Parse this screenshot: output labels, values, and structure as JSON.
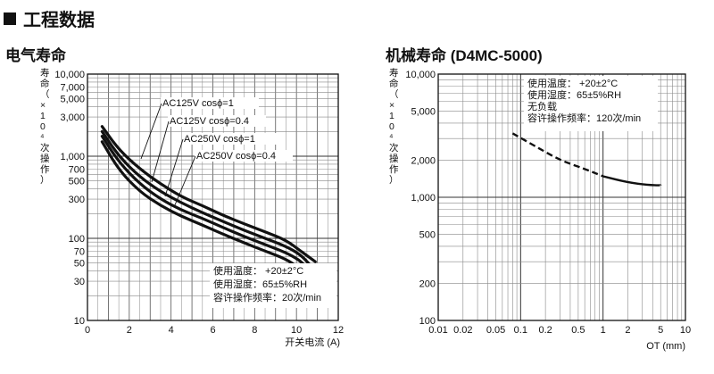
{
  "section_title": "工程数据",
  "chart_data": [
    {
      "type": "line",
      "title": "电气寿命",
      "xlabel": "开关电流 (A)",
      "ylabel": "寿命（×10⁴次操作）",
      "y_scale": "log",
      "xlim": [
        0,
        12
      ],
      "ylim": [
        10,
        10000
      ],
      "x_ticks": [
        0,
        2,
        4,
        6,
        8,
        10,
        12
      ],
      "y_ticks": [
        10,
        30,
        50,
        70,
        100,
        300,
        500,
        700,
        1000,
        3000,
        5000,
        7000,
        10000
      ],
      "y_tick_labels": [
        "10",
        "30",
        "50",
        "70",
        "100",
        "300",
        "500",
        "700",
        "1,000",
        "3,000",
        "5,000",
        "7,000",
        "10,000"
      ],
      "grid": true,
      "series": [
        {
          "name": "AC125V cosϕ=1",
          "x": [
            0.7,
            1.5,
            2.5,
            3.5,
            4.5,
            5.5,
            6.5,
            7.5,
            8.5,
            9.5,
            10.2,
            10.9
          ],
          "y": [
            2300,
            1200,
            700,
            460,
            320,
            250,
            190,
            150,
            120,
            95,
            70,
            52
          ]
        },
        {
          "name": "AC125V cosϕ=0.4",
          "x": [
            0.7,
            1.5,
            2.5,
            3.5,
            4.5,
            5.5,
            6.5,
            7.5,
            8.5,
            9.5,
            10.2,
            10.6
          ],
          "y": [
            2000,
            1000,
            560,
            370,
            270,
            205,
            160,
            125,
            100,
            80,
            63,
            49
          ]
        },
        {
          "name": "AC250V cosϕ=1",
          "x": [
            0.7,
            1.5,
            2.5,
            3.5,
            4.5,
            5.5,
            6.5,
            7.5,
            8.5,
            9.5,
            10.1,
            10.4
          ],
          "y": [
            1750,
            850,
            460,
            300,
            220,
            175,
            135,
            105,
            84,
            67,
            55,
            47
          ]
        },
        {
          "name": "AC250V cosϕ=0.4",
          "x": [
            0.7,
            1.5,
            2.5,
            3.5,
            4.5,
            5.5,
            6.5,
            7.5,
            8.5,
            9.5,
            10.1
          ],
          "y": [
            1500,
            680,
            370,
            250,
            185,
            145,
            112,
            88,
            70,
            56,
            44
          ]
        }
      ],
      "annotation": [
        "使用温度：  +20±2°C",
        "使用湿度：65±5%RH",
        "容许操作频率：20次/min"
      ]
    },
    {
      "type": "line",
      "title": "机械寿命 (D4MC-5000)",
      "xlabel": "OT (mm)",
      "ylabel": "寿命（×10⁴次操作）",
      "x_scale": "log",
      "y_scale": "log",
      "xlim": [
        0.01,
        10
      ],
      "ylim": [
        100,
        10000
      ],
      "x_ticks": [
        0.01,
        0.02,
        0.05,
        0.1,
        0.2,
        0.5,
        1,
        2,
        5,
        10
      ],
      "x_tick_labels": [
        "0.01",
        "0.02",
        "0.05",
        "0.1",
        "0.2",
        "0.5",
        "1",
        "2",
        "5",
        "10"
      ],
      "y_ticks": [
        100,
        200,
        500,
        1000,
        2000,
        5000,
        10000
      ],
      "y_tick_labels": [
        "100",
        "200",
        "500",
        "1,000",
        "2,000",
        "5,000",
        "10,000"
      ],
      "grid": true,
      "series": [
        {
          "style": "dashed",
          "x": [
            0.08,
            0.15,
            0.3,
            0.6,
            1.0
          ],
          "y": [
            3300,
            2600,
            2000,
            1700,
            1480
          ]
        },
        {
          "style": "solid",
          "x": [
            1.0,
            2.0,
            3.5,
            5.0
          ],
          "y": [
            1480,
            1320,
            1260,
            1250
          ]
        }
      ],
      "annotation": [
        "使用温度：  +20±2°C",
        "使用湿度：65±5%RH",
        "无负载",
        "容许操作频率：120次/min"
      ]
    }
  ]
}
